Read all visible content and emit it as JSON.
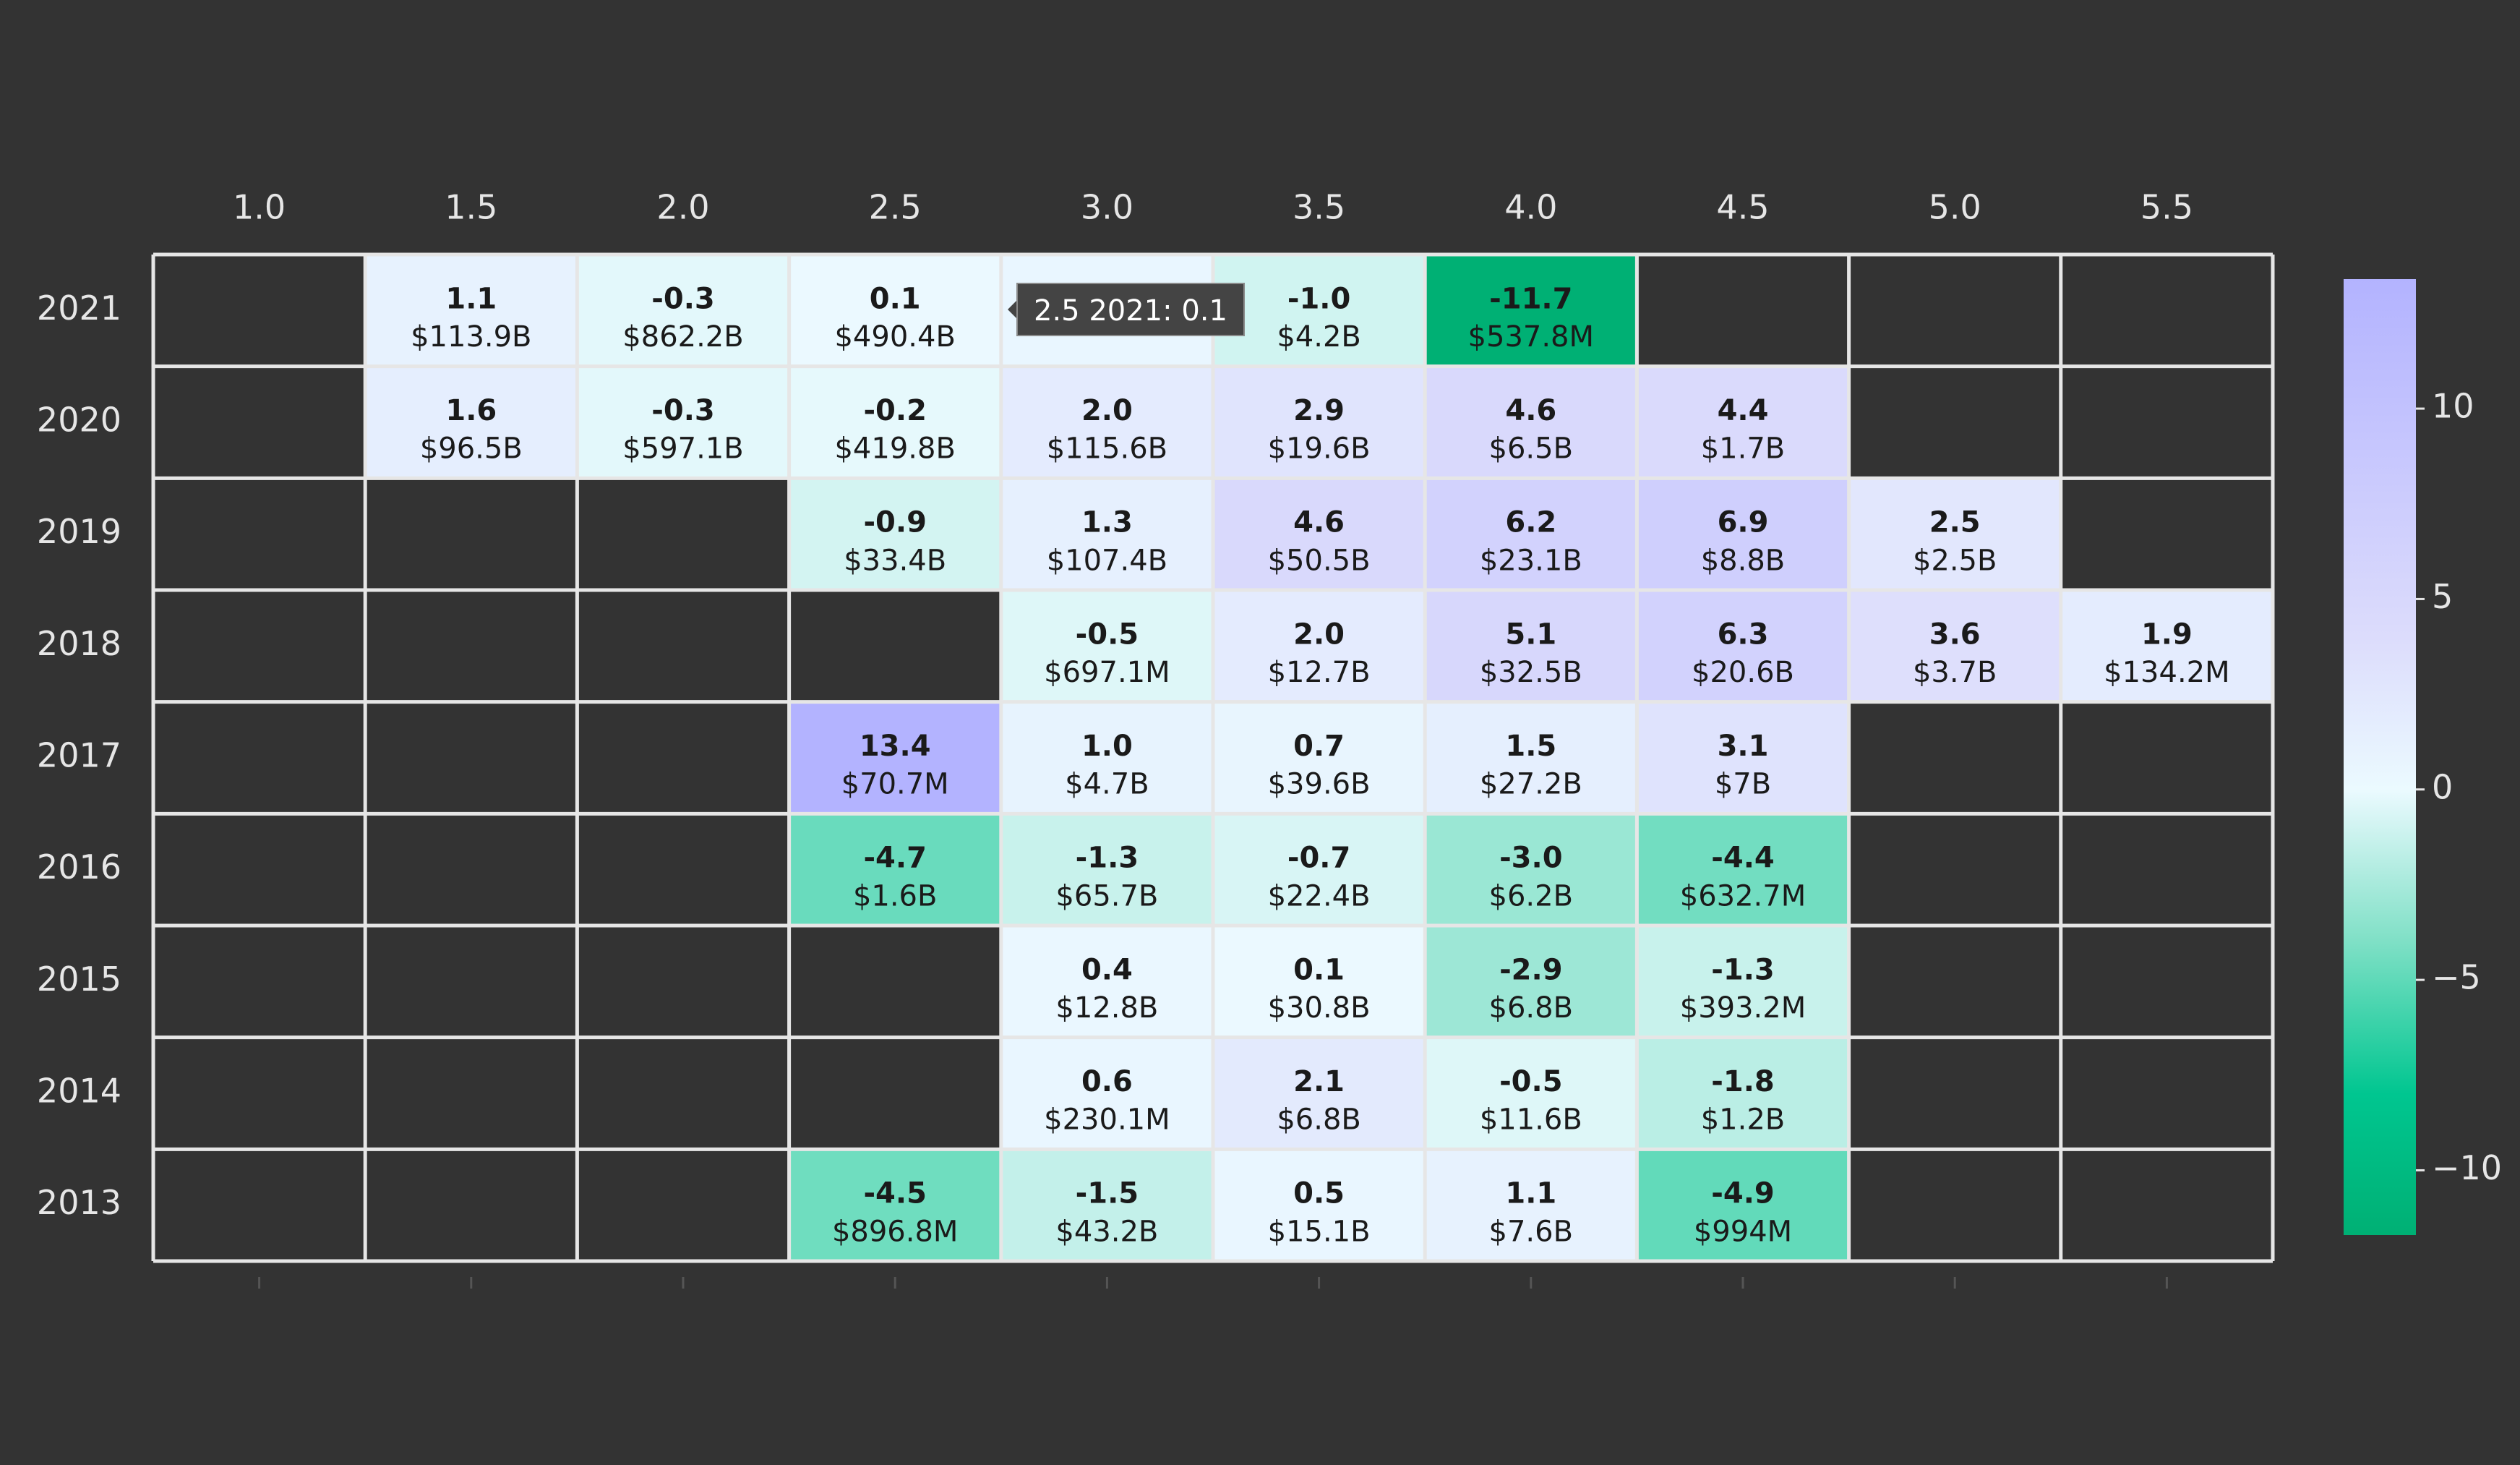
{
  "chart_data": {
    "type": "heatmap",
    "title": "",
    "xlabel": "",
    "ylabel": "",
    "x": [
      "1.0",
      "1.5",
      "2.0",
      "2.5",
      "3.0",
      "3.5",
      "4.0",
      "4.5",
      "5.0",
      "5.5"
    ],
    "y": [
      "2021",
      "2020",
      "2019",
      "2018",
      "2017",
      "2016",
      "2015",
      "2014",
      "2013"
    ],
    "cells": [
      {
        "x": "1.5",
        "y": "2021",
        "value": 1.1,
        "label": "1.1",
        "sublabel": "$113.9B"
      },
      {
        "x": "2.0",
        "y": "2021",
        "value": -0.3,
        "label": "-0.3",
        "sublabel": "$862.2B"
      },
      {
        "x": "2.5",
        "y": "2021",
        "value": 0.1,
        "label": "0.1",
        "sublabel": "$490.4B"
      },
      {
        "x": "3.0",
        "y": "2021",
        "value": 0.5,
        "label": "",
        "sublabel": ""
      },
      {
        "x": "3.5",
        "y": "2021",
        "value": -1.0,
        "label": "-1.0",
        "sublabel": "$4.2B"
      },
      {
        "x": "4.0",
        "y": "2021",
        "value": -11.7,
        "label": "-11.7",
        "sublabel": "$537.8M"
      },
      {
        "x": "1.5",
        "y": "2020",
        "value": 1.6,
        "label": "1.6",
        "sublabel": "$96.5B"
      },
      {
        "x": "2.0",
        "y": "2020",
        "value": -0.3,
        "label": "-0.3",
        "sublabel": "$597.1B"
      },
      {
        "x": "2.5",
        "y": "2020",
        "value": -0.2,
        "label": "-0.2",
        "sublabel": "$419.8B"
      },
      {
        "x": "3.0",
        "y": "2020",
        "value": 2.0,
        "label": "2.0",
        "sublabel": "$115.6B"
      },
      {
        "x": "3.5",
        "y": "2020",
        "value": 2.9,
        "label": "2.9",
        "sublabel": "$19.6B"
      },
      {
        "x": "4.0",
        "y": "2020",
        "value": 4.6,
        "label": "4.6",
        "sublabel": "$6.5B"
      },
      {
        "x": "4.5",
        "y": "2020",
        "value": 4.4,
        "label": "4.4",
        "sublabel": "$1.7B"
      },
      {
        "x": "2.5",
        "y": "2019",
        "value": -0.9,
        "label": "-0.9",
        "sublabel": "$33.4B"
      },
      {
        "x": "3.0",
        "y": "2019",
        "value": 1.3,
        "label": "1.3",
        "sublabel": "$107.4B"
      },
      {
        "x": "3.5",
        "y": "2019",
        "value": 4.6,
        "label": "4.6",
        "sublabel": "$50.5B"
      },
      {
        "x": "4.0",
        "y": "2019",
        "value": 6.2,
        "label": "6.2",
        "sublabel": "$23.1B"
      },
      {
        "x": "4.5",
        "y": "2019",
        "value": 6.9,
        "label": "6.9",
        "sublabel": "$8.8B"
      },
      {
        "x": "5.0",
        "y": "2019",
        "value": 2.5,
        "label": "2.5",
        "sublabel": "$2.5B"
      },
      {
        "x": "3.0",
        "y": "2018",
        "value": -0.5,
        "label": "-0.5",
        "sublabel": "$697.1M"
      },
      {
        "x": "3.5",
        "y": "2018",
        "value": 2.0,
        "label": "2.0",
        "sublabel": "$12.7B"
      },
      {
        "x": "4.0",
        "y": "2018",
        "value": 5.1,
        "label": "5.1",
        "sublabel": "$32.5B"
      },
      {
        "x": "4.5",
        "y": "2018",
        "value": 6.3,
        "label": "6.3",
        "sublabel": "$20.6B"
      },
      {
        "x": "5.0",
        "y": "2018",
        "value": 3.6,
        "label": "3.6",
        "sublabel": "$3.7B"
      },
      {
        "x": "5.5",
        "y": "2018",
        "value": 1.9,
        "label": "1.9",
        "sublabel": "$134.2M"
      },
      {
        "x": "2.5",
        "y": "2017",
        "value": 13.4,
        "label": "13.4",
        "sublabel": "$70.7M"
      },
      {
        "x": "3.0",
        "y": "2017",
        "value": 1.0,
        "label": "1.0",
        "sublabel": "$4.7B"
      },
      {
        "x": "3.5",
        "y": "2017",
        "value": 0.7,
        "label": "0.7",
        "sublabel": "$39.6B"
      },
      {
        "x": "4.0",
        "y": "2017",
        "value": 1.5,
        "label": "1.5",
        "sublabel": "$27.2B"
      },
      {
        "x": "4.5",
        "y": "2017",
        "value": 3.1,
        "label": "3.1",
        "sublabel": "$7B"
      },
      {
        "x": "2.5",
        "y": "2016",
        "value": -4.7,
        "label": "-4.7",
        "sublabel": "$1.6B"
      },
      {
        "x": "3.0",
        "y": "2016",
        "value": -1.3,
        "label": "-1.3",
        "sublabel": "$65.7B"
      },
      {
        "x": "3.5",
        "y": "2016",
        "value": -0.7,
        "label": "-0.7",
        "sublabel": "$22.4B"
      },
      {
        "x": "4.0",
        "y": "2016",
        "value": -3.0,
        "label": "-3.0",
        "sublabel": "$6.2B"
      },
      {
        "x": "4.5",
        "y": "2016",
        "value": -4.4,
        "label": "-4.4",
        "sublabel": "$632.7M"
      },
      {
        "x": "3.0",
        "y": "2015",
        "value": 0.4,
        "label": "0.4",
        "sublabel": "$12.8B"
      },
      {
        "x": "3.5",
        "y": "2015",
        "value": 0.1,
        "label": "0.1",
        "sublabel": "$30.8B"
      },
      {
        "x": "4.0",
        "y": "2015",
        "value": -2.9,
        "label": "-2.9",
        "sublabel": "$6.8B"
      },
      {
        "x": "4.5",
        "y": "2015",
        "value": -1.3,
        "label": "-1.3",
        "sublabel": "$393.2M"
      },
      {
        "x": "3.0",
        "y": "2014",
        "value": 0.6,
        "label": "0.6",
        "sublabel": "$230.1M"
      },
      {
        "x": "3.5",
        "y": "2014",
        "value": 2.1,
        "label": "2.1",
        "sublabel": "$6.8B"
      },
      {
        "x": "4.0",
        "y": "2014",
        "value": -0.5,
        "label": "-0.5",
        "sublabel": "$11.6B"
      },
      {
        "x": "4.5",
        "y": "2014",
        "value": -1.8,
        "label": "-1.8",
        "sublabel": "$1.2B"
      },
      {
        "x": "2.5",
        "y": "2013",
        "value": -4.5,
        "label": "-4.5",
        "sublabel": "$896.8M"
      },
      {
        "x": "3.0",
        "y": "2013",
        "value": -1.5,
        "label": "-1.5",
        "sublabel": "$43.2B"
      },
      {
        "x": "3.5",
        "y": "2013",
        "value": 0.5,
        "label": "0.5",
        "sublabel": "$15.1B"
      },
      {
        "x": "4.0",
        "y": "2013",
        "value": 1.1,
        "label": "1.1",
        "sublabel": "$7.6B"
      },
      {
        "x": "4.5",
        "y": "2013",
        "value": -4.9,
        "label": "-4.9",
        "sublabel": "$994M"
      }
    ],
    "colorscale": {
      "min": -11.7,
      "max": 13.4,
      "stops": [
        {
          "value": -11.7,
          "color": "#00b074"
        },
        {
          "value": -8.0,
          "color": "#00c690"
        },
        {
          "value": -4.0,
          "color": "#7fe0c6"
        },
        {
          "value": 0.0,
          "color": "#ebfaff"
        },
        {
          "value": 4.0,
          "color": "#dcdcfc"
        },
        {
          "value": 13.4,
          "color": "#b3b3ff"
        }
      ],
      "ticks": [
        10,
        5,
        0,
        -5,
        -10
      ],
      "tick_labels": [
        "10",
        "5",
        "0",
        "−5",
        "−10"
      ]
    },
    "empty_cell_color": "#333333",
    "grid_color": "#e6e6e6",
    "axis_text_color": "#e6e6e6",
    "cell_text_color": "#1a1a1a",
    "legend": "right"
  },
  "tooltip": {
    "text": "2.5 2021: 0.1"
  }
}
